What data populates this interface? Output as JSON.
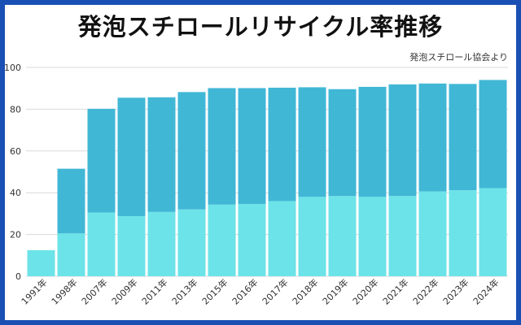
{
  "title": "発泡スチロールリサイクル率推移",
  "source": "発泡スチロール協会より",
  "colors": {
    "frame": "#1a4fb3",
    "upper_segment": "#41b7d6",
    "lower_segment": "#6ce3e8",
    "grid": "#d9d9d9"
  },
  "chart_data": {
    "type": "bar",
    "stacked": true,
    "title": "発泡スチロールリサイクル率推移",
    "xlabel": "",
    "ylabel": "",
    "ylim": [
      0,
      100
    ],
    "yticks": [
      0,
      20,
      40,
      60,
      80,
      100
    ],
    "grid": true,
    "legend": "none",
    "categories": [
      "1991年",
      "1998年",
      "2007年",
      "2009年",
      "2011年",
      "2013年",
      "2015年",
      "2016年",
      "2017年",
      "2018年",
      "2019年",
      "2020年",
      "2021年",
      "2022年",
      "2023年",
      "2024年"
    ],
    "series": [
      {
        "values": [
          12.5,
          20.5,
          30.5,
          28.8,
          30.8,
          32.0,
          34.3,
          34.6,
          36.0,
          38.0,
          38.4,
          38.0,
          38.4,
          40.6,
          41.2,
          42.2
        ]
      },
      {
        "values": [
          0,
          31.0,
          49.7,
          56.7,
          54.9,
          56.2,
          55.8,
          55.5,
          54.3,
          52.5,
          51.2,
          52.7,
          53.5,
          51.7,
          50.9,
          51.8
        ]
      }
    ]
  }
}
